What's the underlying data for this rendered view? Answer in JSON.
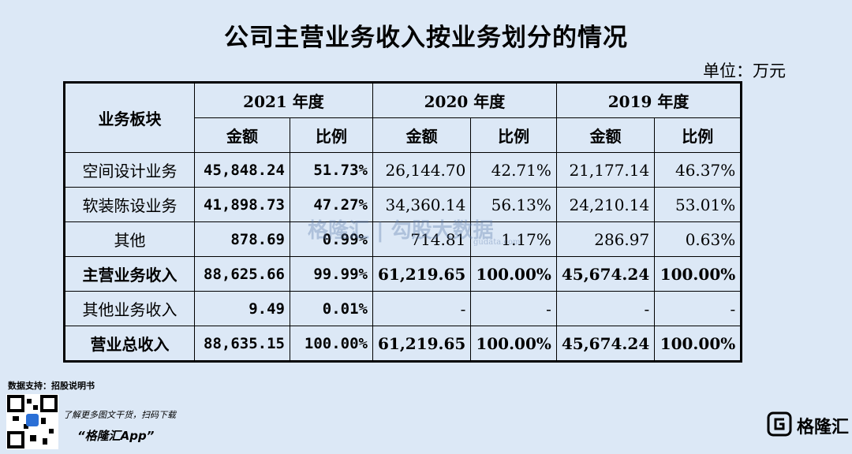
{
  "header": {
    "title": "公司主营业务收入按业务划分的情况",
    "unit": "单位：万元"
  },
  "table": {
    "corner": "业务板块",
    "years": [
      "2021 年度",
      "2020 年度",
      "2019 年度"
    ],
    "subheaders": [
      "金额",
      "比例",
      "金额",
      "比例",
      "金额",
      "比例"
    ],
    "rows": [
      {
        "label": "空间设计业务",
        "cells": [
          "45,848.24",
          "51.73%",
          "26,144.70",
          "42.71%",
          "21,177.14",
          "46.37%"
        ]
      },
      {
        "label": "软装陈设业务",
        "cells": [
          "41,898.73",
          "47.27%",
          "34,360.14",
          "56.13%",
          "24,210.14",
          "53.01%"
        ]
      },
      {
        "label": "其他",
        "cells": [
          "878.69",
          "0.99%",
          "714.81",
          "1.17%",
          "286.97",
          "0.63%"
        ]
      },
      {
        "label": "主营业务收入",
        "bold": true,
        "cells": [
          "88,625.66",
          "99.99%",
          "61,219.65",
          "100.00%",
          "45,674.24",
          "100.00%"
        ]
      },
      {
        "label": "其他业务收入",
        "cells": [
          "9.49",
          "0.01%",
          "-",
          "-",
          "-",
          "-"
        ]
      },
      {
        "label": "营业总收入",
        "bold": true,
        "cells": [
          "88,635.15",
          "100.00%",
          "61,219.65",
          "100.00%",
          "45,674.24",
          "100.00%"
        ]
      }
    ]
  },
  "watermark": {
    "brand": "格隆汇",
    "partner": "勾股大数据",
    "site": "gudata.com"
  },
  "footer": {
    "source": "数据支持：招股说明书",
    "promo": "了解更多图文干货，扫码下载",
    "app": "“格隆汇App”",
    "logo": "格隆汇"
  }
}
